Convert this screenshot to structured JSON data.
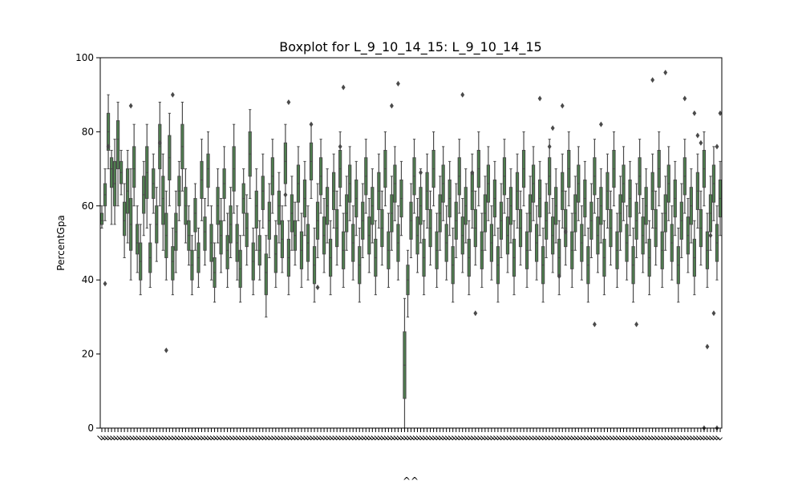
{
  "chart_data": {
    "type": "box",
    "title": "Boxplot for L_9_10_14_15: L_9_10_14_15",
    "xlabel": "^^",
    "ylabel": "PercentGpa",
    "ylim": [
      0,
      100
    ],
    "yticks": [
      0,
      20,
      40,
      60,
      80,
      100
    ],
    "grid": false,
    "legend": "none",
    "box_color": "#4f7f4f",
    "line_color": "#4a4a4a",
    "spine_color": "#000000",
    "category_label_prefix": "L",
    "category_count": 193,
    "boxes": [
      [
        54,
        55,
        56,
        58,
        60
      ],
      [
        56,
        60,
        63,
        66,
        70
      ],
      [
        70,
        75,
        80,
        85,
        90
      ],
      [
        55,
        65,
        70,
        73,
        75
      ],
      [
        55,
        60,
        66,
        72,
        78
      ],
      [
        60,
        70,
        78,
        83,
        88
      ],
      [
        63,
        66,
        69,
        72,
        75
      ],
      [
        46,
        52,
        56,
        61,
        66
      ],
      [
        50,
        58,
        64,
        70,
        75
      ],
      [
        40,
        48,
        55,
        62,
        70
      ],
      [
        60,
        65,
        70,
        76,
        82
      ],
      [
        42,
        47,
        50,
        55,
        60
      ],
      [
        36,
        40,
        45,
        50,
        55
      ],
      [
        52,
        58,
        63,
        68,
        72
      ],
      [
        54,
        62,
        69,
        76,
        82
      ],
      [
        38,
        42,
        46,
        50,
        55
      ],
      [
        58,
        62,
        66,
        70,
        74
      ],
      [
        45,
        50,
        55,
        60,
        65
      ],
      [
        60,
        70,
        76,
        82,
        88
      ],
      [
        48,
        55,
        62,
        68,
        74
      ],
      [
        40,
        46,
        52,
        58,
        64
      ],
      [
        60,
        67,
        73,
        79,
        85
      ],
      [
        36,
        40,
        45,
        49,
        54
      ],
      [
        42,
        48,
        53,
        58,
        64
      ],
      [
        56,
        60,
        64,
        68,
        72
      ],
      [
        64,
        70,
        76,
        82,
        88
      ],
      [
        50,
        55,
        60,
        65,
        70
      ],
      [
        44,
        48,
        52,
        56,
        60
      ],
      [
        36,
        40,
        44,
        48,
        52
      ],
      [
        48,
        53,
        58,
        62,
        66
      ],
      [
        38,
        42,
        46,
        50,
        54
      ],
      [
        56,
        62,
        67,
        72,
        78
      ],
      [
        44,
        48,
        53,
        57,
        62
      ],
      [
        60,
        65,
        70,
        74,
        80
      ],
      [
        40,
        45,
        50,
        55,
        60
      ],
      [
        34,
        38,
        42,
        46,
        50
      ],
      [
        50,
        55,
        60,
        65,
        70
      ],
      [
        42,
        47,
        52,
        56,
        62
      ],
      [
        56,
        62,
        66,
        70,
        76
      ],
      [
        38,
        43,
        48,
        52,
        58
      ],
      [
        46,
        50,
        55,
        60,
        65
      ],
      [
        58,
        64,
        70,
        76,
        82
      ],
      [
        40,
        45,
        50,
        55,
        60
      ],
      [
        34,
        38,
        43,
        48,
        52
      ],
      [
        52,
        58,
        62,
        66,
        70
      ],
      [
        44,
        49,
        54,
        58,
        63
      ],
      [
        62,
        68,
        74,
        80,
        86
      ],
      [
        36,
        40,
        45,
        50,
        54
      ],
      [
        48,
        54,
        60,
        64,
        70
      ],
      [
        40,
        44,
        48,
        52,
        56
      ],
      [
        54,
        59,
        64,
        68,
        74
      ],
      [
        30,
        36,
        42,
        47,
        52
      ],
      [
        46,
        51,
        56,
        61,
        66
      ],
      [
        58,
        63,
        68,
        73,
        78
      ],
      [
        38,
        42,
        47,
        52,
        56
      ],
      [
        50,
        55,
        60,
        64,
        69
      ],
      [
        42,
        46,
        51,
        56,
        60
      ],
      [
        60,
        66,
        72,
        77,
        82
      ],
      [
        36,
        41,
        46,
        51,
        56
      ],
      [
        48,
        53,
        58,
        63,
        68
      ],
      [
        44,
        48,
        52,
        56,
        61
      ],
      [
        56,
        61,
        66,
        71,
        76
      ],
      [
        38,
        43,
        48,
        53,
        58
      ],
      [
        52,
        57,
        62,
        67,
        72
      ],
      [
        40,
        45,
        50,
        55,
        60
      ],
      [
        62,
        67,
        72,
        77,
        82
      ],
      [
        34,
        39,
        44,
        49,
        54
      ],
      [
        46,
        51,
        56,
        61,
        66
      ],
      [
        58,
        63,
        68,
        73,
        78
      ],
      [
        42,
        47,
        52,
        57,
        62
      ],
      [
        50,
        55,
        60,
        65,
        70
      ],
      [
        36,
        41,
        46,
        51,
        56
      ],
      [
        54,
        59,
        64,
        69,
        74
      ],
      [
        44,
        49,
        54,
        59,
        64
      ],
      [
        60,
        65,
        70,
        75,
        80
      ],
      [
        38,
        43,
        48,
        53,
        58
      ],
      [
        48,
        53,
        58,
        63,
        68
      ],
      [
        56,
        61,
        66,
        71,
        76
      ],
      [
        40,
        45,
        50,
        55,
        60
      ],
      [
        52,
        57,
        62,
        67,
        72
      ],
      [
        34,
        39,
        44,
        49,
        54
      ],
      [
        46,
        51,
        56,
        61,
        66
      ],
      [
        58,
        63,
        68,
        73,
        78
      ],
      [
        42,
        47,
        52,
        57,
        62
      ],
      [
        50,
        55,
        60,
        65,
        70
      ],
      [
        36,
        41,
        46,
        51,
        56
      ],
      [
        54,
        59,
        64,
        69,
        74
      ],
      [
        44,
        49,
        54,
        59,
        64
      ],
      [
        60,
        65,
        70,
        75,
        80
      ],
      [
        38,
        43,
        48,
        53,
        58
      ],
      [
        48,
        53,
        58,
        63,
        68
      ],
      [
        56,
        61,
        66,
        71,
        76
      ],
      [
        40,
        45,
        50,
        55,
        60
      ],
      [
        52,
        57,
        62,
        67,
        72
      ],
      [
        0,
        8,
        17,
        26,
        35
      ],
      [
        30,
        36,
        40,
        44,
        48
      ],
      [
        46,
        51,
        56,
        61,
        66
      ],
      [
        58,
        63,
        68,
        73,
        78
      ],
      [
        42,
        47,
        52,
        57,
        62
      ],
      [
        50,
        55,
        60,
        65,
        70
      ],
      [
        36,
        41,
        46,
        51,
        56
      ],
      [
        54,
        59,
        64,
        69,
        74
      ],
      [
        44,
        49,
        54,
        59,
        64
      ],
      [
        60,
        65,
        70,
        75,
        80
      ],
      [
        38,
        43,
        48,
        53,
        58
      ],
      [
        48,
        53,
        58,
        63,
        68
      ],
      [
        56,
        61,
        66,
        71,
        76
      ],
      [
        40,
        45,
        50,
        55,
        60
      ],
      [
        52,
        57,
        62,
        67,
        72
      ],
      [
        34,
        39,
        44,
        49,
        54
      ],
      [
        46,
        51,
        56,
        61,
        66
      ],
      [
        58,
        63,
        68,
        73,
        78
      ],
      [
        42,
        47,
        52,
        57,
        62
      ],
      [
        50,
        55,
        60,
        65,
        70
      ],
      [
        36,
        41,
        46,
        51,
        56
      ],
      [
        54,
        59,
        64,
        69,
        74
      ],
      [
        44,
        49,
        54,
        59,
        64
      ],
      [
        60,
        65,
        70,
        75,
        80
      ],
      [
        38,
        43,
        48,
        53,
        58
      ],
      [
        48,
        53,
        58,
        63,
        68
      ],
      [
        56,
        61,
        66,
        71,
        76
      ],
      [
        40,
        45,
        50,
        55,
        60
      ],
      [
        52,
        57,
        62,
        67,
        72
      ],
      [
        34,
        39,
        44,
        49,
        54
      ],
      [
        46,
        51,
        56,
        61,
        66
      ],
      [
        58,
        63,
        68,
        73,
        78
      ],
      [
        42,
        47,
        52,
        57,
        62
      ],
      [
        50,
        55,
        60,
        65,
        70
      ],
      [
        36,
        41,
        46,
        51,
        56
      ],
      [
        54,
        59,
        64,
        69,
        74
      ],
      [
        44,
        49,
        54,
        59,
        64
      ],
      [
        60,
        65,
        70,
        75,
        80
      ],
      [
        38,
        43,
        48,
        53,
        58
      ],
      [
        48,
        53,
        58,
        63,
        68
      ],
      [
        56,
        61,
        66,
        71,
        76
      ],
      [
        40,
        45,
        50,
        55,
        60
      ],
      [
        52,
        57,
        62,
        67,
        72
      ],
      [
        34,
        39,
        44,
        49,
        54
      ],
      [
        46,
        51,
        56,
        61,
        66
      ],
      [
        58,
        63,
        68,
        73,
        78
      ],
      [
        42,
        47,
        52,
        57,
        62
      ],
      [
        50,
        55,
        60,
        65,
        70
      ],
      [
        36,
        41,
        46,
        51,
        56
      ],
      [
        54,
        59,
        64,
        69,
        74
      ],
      [
        44,
        49,
        54,
        59,
        64
      ],
      [
        60,
        65,
        70,
        75,
        80
      ],
      [
        38,
        43,
        48,
        53,
        58
      ],
      [
        48,
        53,
        58,
        63,
        68
      ],
      [
        56,
        61,
        66,
        71,
        76
      ],
      [
        40,
        45,
        50,
        55,
        60
      ],
      [
        52,
        57,
        62,
        67,
        72
      ],
      [
        34,
        39,
        44,
        49,
        54
      ],
      [
        46,
        51,
        56,
        61,
        66
      ],
      [
        58,
        63,
        68,
        73,
        78
      ],
      [
        42,
        47,
        52,
        57,
        62
      ],
      [
        50,
        55,
        60,
        65,
        70
      ],
      [
        36,
        41,
        46,
        51,
        56
      ],
      [
        54,
        59,
        64,
        69,
        74
      ],
      [
        44,
        49,
        54,
        59,
        64
      ],
      [
        60,
        65,
        70,
        75,
        80
      ],
      [
        38,
        43,
        48,
        53,
        58
      ],
      [
        48,
        53,
        58,
        63,
        68
      ],
      [
        56,
        61,
        66,
        71,
        76
      ],
      [
        40,
        45,
        50,
        55,
        60
      ],
      [
        52,
        57,
        62,
        67,
        72
      ],
      [
        34,
        39,
        44,
        49,
        54
      ],
      [
        46,
        51,
        56,
        61,
        66
      ],
      [
        58,
        63,
        68,
        73,
        78
      ],
      [
        42,
        47,
        52,
        57,
        62
      ],
      [
        50,
        55,
        60,
        65,
        70
      ],
      [
        36,
        41,
        46,
        51,
        56
      ],
      [
        54,
        59,
        64,
        69,
        74
      ],
      [
        44,
        49,
        54,
        59,
        64
      ],
      [
        60,
        65,
        70,
        75,
        80
      ],
      [
        38,
        43,
        48,
        53,
        58
      ],
      [
        48,
        53,
        58,
        63,
        68
      ],
      [
        56,
        61,
        66,
        71,
        76
      ],
      [
        40,
        45,
        50,
        55,
        60
      ],
      [
        52,
        57,
        62,
        67,
        72
      ],
      [
        34,
        39,
        44,
        49,
        54
      ],
      [
        46,
        51,
        56,
        61,
        66
      ],
      [
        58,
        63,
        68,
        73,
        78
      ],
      [
        42,
        47,
        52,
        57,
        62
      ],
      [
        50,
        55,
        60,
        65,
        70
      ],
      [
        36,
        41,
        46,
        51,
        56
      ],
      [
        54,
        59,
        64,
        69,
        74
      ],
      [
        44,
        49,
        54,
        59,
        64
      ],
      [
        60,
        65,
        70,
        75,
        80
      ],
      [
        38,
        43,
        48,
        53,
        58
      ],
      [
        48,
        53,
        58,
        63,
        68
      ],
      [
        56,
        61,
        66,
        71,
        76
      ],
      [
        40,
        45,
        50,
        55,
        60
      ],
      [
        52,
        57,
        62,
        67,
        72
      ]
    ],
    "outliers": [
      {
        "index": 1,
        "value": 39
      },
      {
        "index": 2,
        "value": 76
      },
      {
        "index": 9,
        "value": 87
      },
      {
        "index": 18,
        "value": 77
      },
      {
        "index": 22,
        "value": 90
      },
      {
        "index": 20,
        "value": 21
      },
      {
        "index": 58,
        "value": 88
      },
      {
        "index": 57,
        "value": 63
      },
      {
        "index": 65,
        "value": 82
      },
      {
        "index": 67,
        "value": 38
      },
      {
        "index": 74,
        "value": 76
      },
      {
        "index": 75,
        "value": 92
      },
      {
        "index": 90,
        "value": 87
      },
      {
        "index": 92,
        "value": 93
      },
      {
        "index": 99,
        "value": 69
      },
      {
        "index": 112,
        "value": 90
      },
      {
        "index": 116,
        "value": 31
      },
      {
        "index": 115,
        "value": 69
      },
      {
        "index": 136,
        "value": 89
      },
      {
        "index": 140,
        "value": 81
      },
      {
        "index": 139,
        "value": 76
      },
      {
        "index": 143,
        "value": 87
      },
      {
        "index": 144,
        "value": 53
      },
      {
        "index": 142,
        "value": 41
      },
      {
        "index": 155,
        "value": 82
      },
      {
        "index": 153,
        "value": 28
      },
      {
        "index": 166,
        "value": 28
      },
      {
        "index": 171,
        "value": 94
      },
      {
        "index": 175,
        "value": 96
      },
      {
        "index": 181,
        "value": 89
      },
      {
        "index": 185,
        "value": 79
      },
      {
        "index": 188,
        "value": 22
      },
      {
        "index": 187,
        "value": 0
      },
      {
        "index": 189,
        "value": 52
      },
      {
        "index": 186,
        "value": 77
      },
      {
        "index": 184,
        "value": 85
      },
      {
        "index": 190,
        "value": 31
      },
      {
        "index": 191,
        "value": 76
      },
      {
        "index": 192,
        "value": 85
      },
      {
        "index": 191,
        "value": 0
      }
    ]
  }
}
